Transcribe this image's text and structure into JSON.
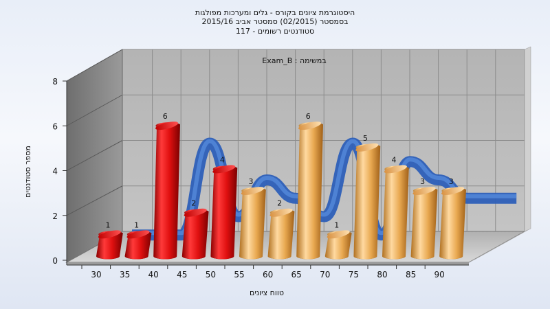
{
  "title_lines": [
    "היסטוגרמת ציונים בקורס - גלים ומערכות מפולגות",
    "בסמסטר  (02/2015)  סמסטר אביב 2015/16",
    "סטודנטים רשומים - 117"
  ],
  "chart_data": {
    "type": "bar",
    "title": "היסטוגרמת ציונים בקורס - גלים ומערכות מפולגות",
    "subtitle": "במשימה : Exam_B",
    "xlabel": "טווח ציונים",
    "ylabel": "מספר סטודנטים",
    "ylim": [
      0,
      8
    ],
    "yticks": [
      0,
      2,
      4,
      6,
      8
    ],
    "x_ticks": [
      "30",
      "35",
      "40",
      "45",
      "50",
      "55",
      "60",
      "65",
      "70",
      "75",
      "80",
      "85",
      "90"
    ],
    "bars": [
      {
        "value": 1,
        "label": "1",
        "color": "red"
      },
      {
        "value": 1,
        "label": "1",
        "color": "red"
      },
      {
        "value": 6,
        "label": "6",
        "color": "red"
      },
      {
        "value": 2,
        "label": "2",
        "color": "red"
      },
      {
        "value": 4,
        "label": "4",
        "color": "red"
      },
      {
        "value": 3,
        "label": "3",
        "color": "orange"
      },
      {
        "value": 2,
        "label": "2",
        "color": "orange"
      },
      {
        "value": 6,
        "label": "6",
        "color": "orange"
      },
      {
        "value": 1,
        "label": "1",
        "color": "orange"
      },
      {
        "value": 5,
        "label": "5",
        "color": "orange"
      },
      {
        "value": 4,
        "label": "4",
        "color": "orange"
      },
      {
        "value": 3,
        "label": "3",
        "color": "orange"
      },
      {
        "value": 3,
        "label": "3",
        "color": "orange"
      }
    ],
    "grid": true,
    "colors": {
      "red_bar": "#e01010",
      "orange_bar": "#e8a850",
      "ribbon": "#3a70c8",
      "back_wall": "#b8b8b8",
      "side_wall": "#8a8a8a",
      "floor": "#c4c4c4"
    }
  }
}
